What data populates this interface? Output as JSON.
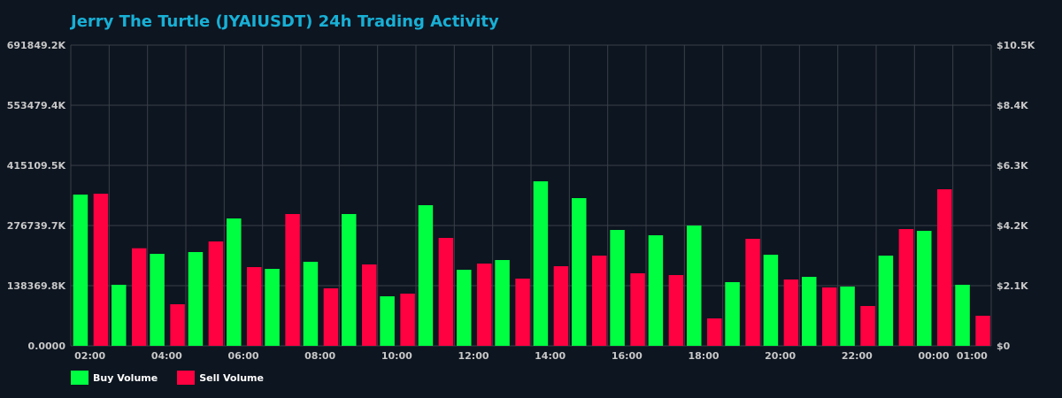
{
  "header": {
    "title": "Jerry The Turtle (JYAIUSDT) 24h Trading Activity"
  },
  "colors": {
    "background": "#0d1520",
    "grid": "#3a4049",
    "buy": "#00ff41",
    "sell": "#ff0040",
    "title": "#18b0d6",
    "axis_text": "#c8c8c8"
  },
  "legend": {
    "items": [
      {
        "label": "Buy Volume",
        "color": "#00ff41"
      },
      {
        "label": "Sell Volume",
        "color": "#ff0040"
      }
    ]
  },
  "chart_data": {
    "type": "bar",
    "title": "Jerry The Turtle (JYAIUSDT) 24h Trading Activity",
    "xlabel": "",
    "ylabel": "",
    "categories": [
      "02:00",
      "03:00",
      "04:00",
      "05:00",
      "06:00",
      "07:00",
      "08:00",
      "09:00",
      "10:00",
      "11:00",
      "12:00",
      "13:00",
      "14:00",
      "15:00",
      "16:00",
      "17:00",
      "18:00",
      "19:00",
      "20:00",
      "21:00",
      "22:00",
      "23:00",
      "00:00",
      "01:00"
    ],
    "x_tick_labels": [
      "02:00",
      "04:00",
      "06:00",
      "08:00",
      "10:00",
      "12:00",
      "14:00",
      "16:00",
      "18:00",
      "20:00",
      "22:00",
      "00:00",
      "01:00"
    ],
    "x_tick_indices": [
      0,
      2,
      4,
      6,
      8,
      10,
      12,
      14,
      16,
      18,
      20,
      22,
      23
    ],
    "series": [
      {
        "name": "Buy Volume",
        "color": "#00ff41",
        "unit": "K",
        "values": [
          347959,
          140405,
          211624,
          215694,
          293018,
          177032,
          193311,
          303193,
          113952,
          323541,
          174997,
          197380,
          378482,
          339820,
          266565,
          254356,
          276740,
          146509,
          209590,
          158718,
          136335,
          207555,
          264531,
          140405
        ]
      },
      {
        "name": "Sell Volume",
        "color": "#ff0040",
        "unit": "K",
        "values": [
          349994,
          224444,
          95638,
          240112,
          181102,
          303193,
          132265,
          187206,
          120056,
          248252,
          189241,
          154649,
          183137,
          207555,
          166858,
          162788,
          63080,
          246217,
          152614,
          134300,
          91568,
          268600,
          360168,
          69185
        ]
      }
    ],
    "ylim": [
      0,
      691849.2
    ],
    "y_tick_labels": [
      "0.0000",
      "138369.8K",
      "276739.7K",
      "415109.5K",
      "553479.4K",
      "691849.2K"
    ],
    "y2lim": [
      0,
      10500
    ],
    "y2_tick_labels": [
      "$0",
      "$2.1K",
      "$4.2K",
      "$6.3K",
      "$8.4K",
      "$10.5K"
    ],
    "grid": true,
    "legend_position": "bottom-left"
  }
}
